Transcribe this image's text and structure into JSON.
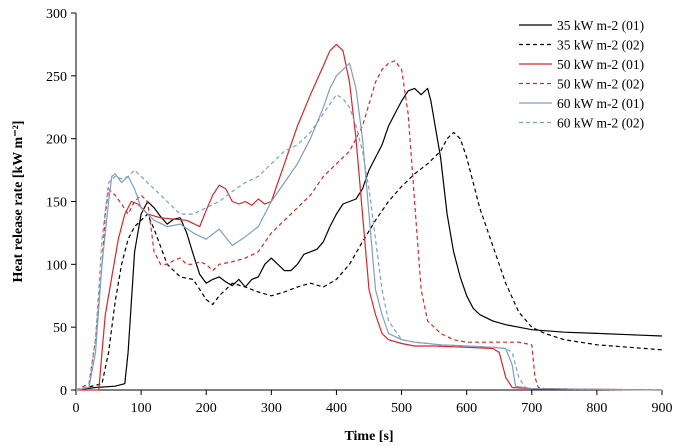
{
  "chart_data": {
    "type": "line",
    "title": "",
    "xlabel": "Time [s]",
    "ylabel": "Heat release rate [kW m⁻²]",
    "xlim": [
      0,
      900
    ],
    "ylim": [
      0,
      300
    ],
    "xticks": [
      0,
      100,
      200,
      300,
      400,
      500,
      600,
      700,
      800,
      900
    ],
    "yticks": [
      0,
      50,
      100,
      150,
      200,
      250,
      300
    ],
    "grid": false,
    "legend_position": "top-right",
    "series": [
      {
        "name": "35 kW m-2 (01)",
        "color": "#000000",
        "dash": "solid",
        "x": [
          0,
          30,
          60,
          75,
          80,
          90,
          100,
          110,
          120,
          130,
          140,
          150,
          160,
          170,
          180,
          190,
          200,
          210,
          220,
          230,
          240,
          250,
          260,
          270,
          280,
          290,
          300,
          310,
          320,
          330,
          340,
          350,
          360,
          370,
          380,
          390,
          400,
          410,
          420,
          430,
          440,
          450,
          460,
          470,
          480,
          490,
          500,
          510,
          520,
          530,
          540,
          545,
          550,
          560,
          570,
          580,
          590,
          600,
          610,
          620,
          640,
          660,
          680,
          700,
          750,
          800,
          850,
          900
        ],
        "y": [
          0,
          2,
          3,
          5,
          30,
          110,
          140,
          150,
          145,
          138,
          132,
          136,
          137,
          125,
          108,
          92,
          85,
          88,
          90,
          86,
          83,
          88,
          82,
          88,
          90,
          100,
          105,
          100,
          95,
          95,
          100,
          108,
          110,
          112,
          118,
          130,
          140,
          148,
          150,
          152,
          160,
          175,
          185,
          195,
          210,
          220,
          230,
          238,
          240,
          235,
          240,
          230,
          215,
          185,
          140,
          110,
          90,
          75,
          65,
          60,
          55,
          52,
          50,
          48,
          46,
          45,
          44,
          43
        ]
      },
      {
        "name": "35 kW m-2 (02)",
        "color": "#000000",
        "dash": "dashed",
        "x": [
          0,
          40,
          50,
          60,
          70,
          80,
          90,
          100,
          110,
          120,
          140,
          160,
          180,
          200,
          210,
          220,
          230,
          240,
          260,
          280,
          300,
          320,
          340,
          360,
          380,
          400,
          420,
          440,
          460,
          480,
          500,
          520,
          540,
          560,
          570,
          580,
          590,
          600,
          610,
          620,
          640,
          660,
          680,
          700,
          720,
          750,
          800,
          850,
          900
        ],
        "y": [
          0,
          5,
          30,
          70,
          100,
          120,
          130,
          135,
          140,
          128,
          100,
          90,
          88,
          72,
          68,
          75,
          80,
          85,
          82,
          78,
          75,
          78,
          82,
          85,
          82,
          88,
          100,
          118,
          135,
          150,
          162,
          172,
          180,
          190,
          200,
          205,
          200,
          185,
          165,
          145,
          115,
          85,
          62,
          50,
          45,
          40,
          36,
          34,
          32
        ]
      },
      {
        "name": "50 kW m-2 (01)",
        "color": "#d62728",
        "dash": "solid",
        "x": [
          0,
          35,
          40,
          45,
          55,
          65,
          75,
          85,
          95,
          110,
          130,
          150,
          170,
          190,
          200,
          210,
          220,
          230,
          240,
          250,
          260,
          270,
          280,
          290,
          300,
          320,
          340,
          360,
          380,
          390,
          400,
          410,
          420,
          430,
          440,
          450,
          460,
          470,
          480,
          500,
          520,
          550,
          600,
          640,
          650,
          660,
          670,
          700,
          900
        ],
        "y": [
          0,
          0,
          30,
          60,
          90,
          120,
          140,
          150,
          148,
          140,
          137,
          136,
          135,
          130,
          143,
          155,
          163,
          160,
          150,
          148,
          150,
          147,
          152,
          148,
          150,
          180,
          210,
          235,
          258,
          270,
          275,
          270,
          245,
          200,
          140,
          80,
          60,
          45,
          40,
          37,
          35,
          35,
          34,
          33,
          30,
          10,
          2,
          1,
          0
        ]
      },
      {
        "name": "50 kW m-2 (02)",
        "color": "#d62728",
        "dash": "dashed",
        "x": [
          0,
          20,
          30,
          40,
          45,
          50,
          60,
          70,
          80,
          90,
          100,
          110,
          120,
          130,
          140,
          150,
          160,
          170,
          180,
          190,
          200,
          210,
          220,
          240,
          260,
          280,
          300,
          320,
          340,
          360,
          380,
          400,
          420,
          440,
          460,
          470,
          480,
          490,
          500,
          510,
          520,
          530,
          540,
          560,
          580,
          600,
          640,
          680,
          700,
          705,
          710,
          720,
          900
        ],
        "y": [
          0,
          5,
          40,
          100,
          140,
          160,
          155,
          148,
          140,
          150,
          155,
          150,
          110,
          100,
          100,
          103,
          105,
          100,
          100,
          102,
          100,
          95,
          100,
          102,
          105,
          110,
          125,
          135,
          145,
          155,
          170,
          180,
          190,
          210,
          245,
          255,
          260,
          262,
          255,
          220,
          150,
          80,
          55,
          45,
          40,
          38,
          38,
          38,
          36,
          10,
          2,
          1,
          0
        ]
      },
      {
        "name": "60 kW m-2 (01)",
        "color": "#7f9fbf",
        "dash": "solid",
        "x": [
          0,
          20,
          30,
          40,
          50,
          55,
          60,
          70,
          80,
          90,
          100,
          110,
          120,
          140,
          160,
          180,
          200,
          220,
          240,
          260,
          280,
          300,
          320,
          340,
          360,
          380,
          390,
          400,
          410,
          420,
          430,
          440,
          450,
          460,
          470,
          480,
          500,
          520,
          560,
          600,
          640,
          660,
          670,
          675,
          700,
          900
        ],
        "y": [
          0,
          2,
          30,
          100,
          150,
          170,
          172,
          165,
          170,
          160,
          145,
          140,
          135,
          130,
          132,
          125,
          120,
          128,
          115,
          122,
          130,
          150,
          165,
          180,
          200,
          225,
          240,
          250,
          255,
          260,
          240,
          200,
          140,
          80,
          60,
          45,
          40,
          38,
          36,
          35,
          34,
          33,
          20,
          3,
          1,
          0
        ]
      },
      {
        "name": "60 kW m-2 (02)",
        "color": "#7f9fbf",
        "dash": "dashed",
        "x": [
          0,
          20,
          30,
          40,
          50,
          60,
          70,
          80,
          90,
          100,
          120,
          140,
          160,
          180,
          200,
          220,
          240,
          260,
          280,
          300,
          320,
          340,
          360,
          380,
          400,
          410,
          420,
          430,
          440,
          450,
          460,
          470,
          480,
          500,
          520,
          560,
          600,
          640,
          660,
          670,
          680,
          690,
          700,
          900
        ],
        "y": [
          0,
          3,
          40,
          120,
          165,
          170,
          168,
          170,
          175,
          170,
          160,
          150,
          140,
          140,
          145,
          150,
          158,
          165,
          170,
          180,
          190,
          195,
          205,
          220,
          235,
          232,
          225,
          210,
          190,
          160,
          120,
          80,
          55,
          40,
          38,
          36,
          35,
          34,
          33,
          30,
          10,
          2,
          1,
          0
        ]
      }
    ]
  }
}
